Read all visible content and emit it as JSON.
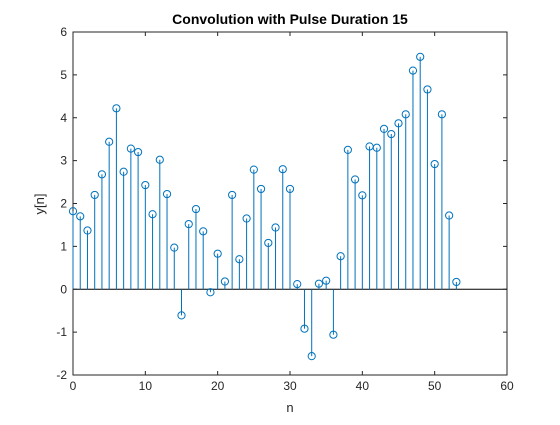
{
  "chart_data": {
    "type": "stem",
    "title": "Convolution with Pulse Duration 15",
    "xlabel": "n",
    "ylabel": "y[n]",
    "xlim": [
      0,
      60
    ],
    "ylim": [
      -2,
      6
    ],
    "xticks": [
      "0",
      "10",
      "20",
      "30",
      "40",
      "50",
      "60"
    ],
    "yticks": [
      "-2",
      "-1",
      "0",
      "1",
      "2",
      "3",
      "4",
      "5",
      "6"
    ],
    "grid": false,
    "color": "#0072BD",
    "series": [
      {
        "x": [
          0,
          1,
          2,
          3,
          4,
          5,
          6,
          7,
          8,
          9,
          10,
          11,
          12,
          13,
          14,
          15,
          16,
          17,
          18,
          19,
          20,
          21,
          22,
          23,
          24,
          25,
          26,
          27,
          28,
          29,
          30,
          31,
          32,
          33,
          34,
          35,
          36,
          37,
          38,
          39,
          40,
          41,
          42,
          43,
          44,
          45,
          46,
          47,
          48,
          49,
          50,
          51,
          52,
          53
        ],
        "y": [
          1.82,
          1.7,
          1.37,
          2.2,
          2.68,
          3.44,
          4.22,
          2.74,
          3.28,
          3.2,
          2.43,
          1.75,
          3.02,
          2.22,
          0.97,
          -0.61,
          1.52,
          1.87,
          1.35,
          -0.07,
          0.83,
          0.18,
          2.2,
          0.7,
          1.65,
          2.79,
          2.34,
          1.08,
          1.44,
          2.8,
          2.34,
          0.12,
          -0.92,
          -1.56,
          0.13,
          0.2,
          -1.06,
          0.77,
          3.25,
          2.56,
          2.19,
          3.33,
          3.3,
          3.74,
          3.62,
          3.87,
          4.08,
          5.1,
          5.42,
          4.66,
          2.92,
          4.08,
          1.72,
          0.17
        ]
      }
    ]
  }
}
